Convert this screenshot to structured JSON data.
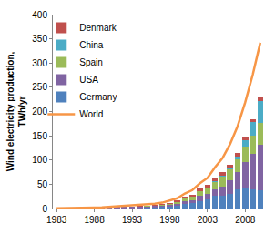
{
  "chart_data": {
    "type": "bar",
    "stacked": true,
    "grid": false,
    "legend": "upper left",
    "y_label": "Wind electricity production, TWh/yr",
    "x": [
      1983,
      1984,
      1985,
      1986,
      1987,
      1988,
      1989,
      1990,
      1991,
      1992,
      1993,
      1994,
      1995,
      1996,
      1997,
      1998,
      1999,
      2000,
      2001,
      2002,
      2003,
      2004,
      2005,
      2006,
      2007,
      2008,
      2009,
      2010
    ],
    "xlim": [
      1982.5,
      2010.5
    ],
    "xticks": [
      1983,
      1988,
      1993,
      1998,
      2003,
      2008
    ],
    "ylim": [
      0,
      400
    ],
    "yticks": [
      0,
      50,
      100,
      150,
      200,
      250,
      300,
      350,
      400
    ],
    "series": [
      {
        "name": "Denmark",
        "color": "#c0504d",
        "type": "bar",
        "values": [
          0.02,
          0.03,
          0.06,
          0.1,
          0.2,
          0.3,
          0.5,
          0.6,
          0.7,
          0.9,
          1.0,
          1.1,
          1.2,
          1.2,
          1.9,
          2.8,
          3.0,
          4.2,
          4.3,
          4.9,
          5.6,
          6.6,
          6.6,
          6.1,
          7.2,
          6.9,
          6.7,
          7.8
        ]
      },
      {
        "name": "China",
        "color": "#4bacc6",
        "type": "bar",
        "values": [
          0,
          0,
          0,
          0,
          0,
          0,
          0,
          0,
          0,
          0,
          0,
          0,
          0,
          0.1,
          0.2,
          0.3,
          0.4,
          0.6,
          0.7,
          0.9,
          1.0,
          1.3,
          1.9,
          3.7,
          5.7,
          13.1,
          27.6,
          44.6
        ]
      },
      {
        "name": "Spain",
        "color": "#9bbb59",
        "type": "bar",
        "values": [
          0,
          0,
          0,
          0,
          0,
          0,
          0,
          0,
          0,
          0,
          0,
          0,
          0.3,
          0.4,
          0.7,
          1.4,
          2.7,
          4.7,
          6.9,
          9.3,
          11.7,
          15.7,
          21.2,
          23.0,
          27.6,
          32.2,
          38.1,
          43.7
        ]
      },
      {
        "name": "USA",
        "color": "#8064a2",
        "type": "bar",
        "values": [
          0,
          0.2,
          0.6,
          1.0,
          1.4,
          1.8,
          2.1,
          2.8,
          2.9,
          2.9,
          3.0,
          3.4,
          3.2,
          3.2,
          3.3,
          3.0,
          4.5,
          5.6,
          6.7,
          10.4,
          11.2,
          14.1,
          17.8,
          26.6,
          34.5,
          55.4,
          73.9,
          94.6
        ]
      },
      {
        "name": "Germany",
        "color": "#4f81bd",
        "type": "bar",
        "values": [
          0,
          0,
          0,
          0,
          0,
          0,
          0,
          0.07,
          0.2,
          0.3,
          0.6,
          0.9,
          1.5,
          2.0,
          3.0,
          4.5,
          5.5,
          9.5,
          10.5,
          15.8,
          18.7,
          25.5,
          27.2,
          30.7,
          39.7,
          40.6,
          38.6,
          37.8
        ]
      },
      {
        "name": "World",
        "color": "#f79646",
        "type": "line",
        "values": [
          0.3,
          0.4,
          0.6,
          1,
          1.5,
          2,
          2.5,
          3.6,
          4.1,
          4.6,
          5.6,
          7.1,
          8.3,
          10,
          12,
          16,
          21,
          31,
          38,
          52,
          63,
          85,
          104,
          133,
          170,
          219,
          276,
          342
        ]
      }
    ]
  }
}
